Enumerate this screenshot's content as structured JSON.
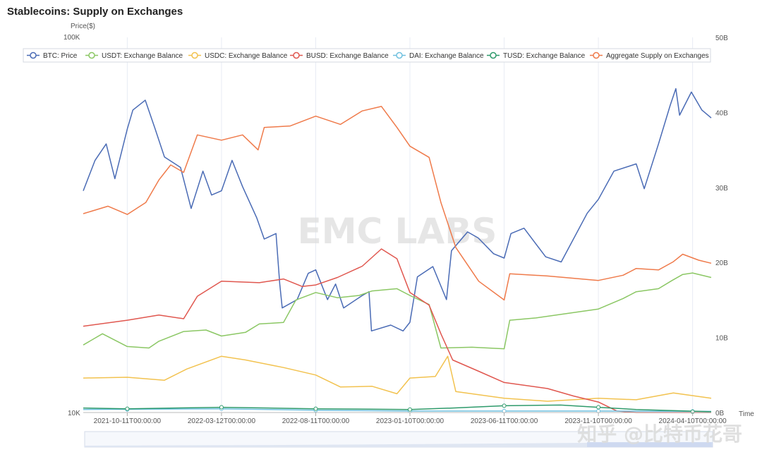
{
  "title": "Stablecoins: Supply on Exchanges",
  "watermark_center": "EMC LABS",
  "watermark_corner": "知乎 @比特币花哥",
  "chart_data": {
    "type": "line",
    "title": "Stablecoins: Supply on Exchanges",
    "left_axis": {
      "label": "Price($)",
      "min": 10000,
      "max": 100000,
      "scale": "log",
      "ticks": [
        "100K",
        "10K"
      ]
    },
    "right_axis": {
      "label": "",
      "min": 0,
      "max": 50,
      "ticks": [
        "0B",
        "10B",
        "20B",
        "30B",
        "40B",
        "50B"
      ]
    },
    "x_axis": {
      "label": "Time",
      "start": "2021-08-01",
      "end": "2024-05-10",
      "ticks": [
        "2021-10-11T00:00:00",
        "2022-03-12T00:00:00",
        "2022-08-11T00:00:00",
        "2023-01-10T00:00:00",
        "2023-06-11T00:00:00",
        "2023-11-10T00:00:00",
        "2024-04-10T00:00:00"
      ]
    },
    "grid": "vertical",
    "legend_position": "top",
    "series": [
      {
        "name": "BTC: Price",
        "axis": "left",
        "color": "#4a6bb5",
        "points": [
          [
            "2021-08-01",
            39000
          ],
          [
            "2021-08-20",
            47000
          ],
          [
            "2021-09-07",
            52000
          ],
          [
            "2021-09-21",
            42000
          ],
          [
            "2021-10-11",
            57000
          ],
          [
            "2021-10-20",
            64000
          ],
          [
            "2021-11-09",
            68000
          ],
          [
            "2021-11-25",
            57000
          ],
          [
            "2021-12-10",
            48000
          ],
          [
            "2022-01-05",
            45000
          ],
          [
            "2022-01-22",
            35000
          ],
          [
            "2022-02-10",
            44000
          ],
          [
            "2022-02-24",
            38000
          ],
          [
            "2022-03-12",
            39000
          ],
          [
            "2022-03-29",
            47000
          ],
          [
            "2022-04-15",
            40000
          ],
          [
            "2022-05-08",
            33000
          ],
          [
            "2022-05-20",
            29000
          ],
          [
            "2022-06-08",
            30000
          ],
          [
            "2022-06-14",
            22000
          ],
          [
            "2022-06-18",
            19000
          ],
          [
            "2022-07-12",
            20000
          ],
          [
            "2022-07-30",
            23500
          ],
          [
            "2022-08-11",
            24000
          ],
          [
            "2022-08-30",
            20000
          ],
          [
            "2022-09-12",
            22000
          ],
          [
            "2022-09-25",
            19000
          ],
          [
            "2022-10-25",
            20500
          ],
          [
            "2022-11-05",
            21000
          ],
          [
            "2022-11-09",
            16500
          ],
          [
            "2022-12-10",
            17100
          ],
          [
            "2022-12-30",
            16500
          ],
          [
            "2023-01-10",
            17400
          ],
          [
            "2023-01-22",
            23000
          ],
          [
            "2023-02-16",
            24500
          ],
          [
            "2023-03-10",
            20000
          ],
          [
            "2023-03-18",
            27000
          ],
          [
            "2023-04-13",
            30300
          ],
          [
            "2023-04-30",
            29200
          ],
          [
            "2023-05-25",
            26500
          ],
          [
            "2023-06-11",
            25800
          ],
          [
            "2023-06-22",
            30000
          ],
          [
            "2023-07-13",
            31000
          ],
          [
            "2023-08-17",
            26000
          ],
          [
            "2023-09-11",
            25200
          ],
          [
            "2023-10-23",
            34000
          ],
          [
            "2023-11-10",
            37000
          ],
          [
            "2023-12-05",
            44000
          ],
          [
            "2024-01-10",
            46000
          ],
          [
            "2024-01-23",
            39500
          ],
          [
            "2024-02-15",
            52000
          ],
          [
            "2024-03-05",
            66000
          ],
          [
            "2024-03-14",
            73000
          ],
          [
            "2024-03-20",
            62000
          ],
          [
            "2024-04-08",
            71500
          ],
          [
            "2024-04-25",
            64000
          ],
          [
            "2024-05-10",
            61000
          ]
        ]
      },
      {
        "name": "USDT: Exchange Balance",
        "axis": "right",
        "color": "#8bc764",
        "points": [
          [
            "2021-08-01",
            9.0
          ],
          [
            "2021-09-01",
            10.5
          ],
          [
            "2021-10-11",
            8.8
          ],
          [
            "2021-11-15",
            8.6
          ],
          [
            "2021-12-01",
            9.5
          ],
          [
            "2022-01-10",
            10.8
          ],
          [
            "2022-02-15",
            11.0
          ],
          [
            "2022-03-12",
            10.2
          ],
          [
            "2022-04-20",
            10.7
          ],
          [
            "2022-05-12",
            11.8
          ],
          [
            "2022-06-20",
            12.0
          ],
          [
            "2022-07-10",
            15.0
          ],
          [
            "2022-08-11",
            16.0
          ],
          [
            "2022-09-15",
            15.3
          ],
          [
            "2022-10-20",
            15.6
          ],
          [
            "2022-11-10",
            16.2
          ],
          [
            "2022-12-20",
            16.5
          ],
          [
            "2023-01-10",
            15.6
          ],
          [
            "2023-02-10",
            14.4
          ],
          [
            "2023-03-01",
            8.6
          ],
          [
            "2023-04-20",
            8.7
          ],
          [
            "2023-06-11",
            8.5
          ],
          [
            "2023-06-20",
            12.3
          ],
          [
            "2023-08-01",
            12.6
          ],
          [
            "2023-09-20",
            13.2
          ],
          [
            "2023-11-10",
            13.8
          ],
          [
            "2023-12-20",
            15.2
          ],
          [
            "2024-01-10",
            16.1
          ],
          [
            "2024-02-15",
            16.5
          ],
          [
            "2024-03-08",
            17.6
          ],
          [
            "2024-03-25",
            18.4
          ],
          [
            "2024-04-10",
            18.6
          ],
          [
            "2024-05-10",
            18.0
          ]
        ]
      },
      {
        "name": "USDC: Exchange Balance",
        "axis": "right",
        "color": "#f2c24f",
        "points": [
          [
            "2021-08-01",
            4.6
          ],
          [
            "2021-10-11",
            4.7
          ],
          [
            "2021-12-10",
            4.3
          ],
          [
            "2022-01-15",
            5.8
          ],
          [
            "2022-03-12",
            7.5
          ],
          [
            "2022-04-20",
            7.0
          ],
          [
            "2022-06-20",
            6.0
          ],
          [
            "2022-08-11",
            5.0
          ],
          [
            "2022-09-20",
            3.4
          ],
          [
            "2022-11-10",
            3.5
          ],
          [
            "2022-12-20",
            2.5
          ],
          [
            "2023-01-10",
            4.6
          ],
          [
            "2023-02-20",
            4.8
          ],
          [
            "2023-03-12",
            7.5
          ],
          [
            "2023-03-25",
            2.8
          ],
          [
            "2023-06-11",
            1.9
          ],
          [
            "2023-08-20",
            1.5
          ],
          [
            "2023-11-10",
            1.9
          ],
          [
            "2024-01-10",
            1.7
          ],
          [
            "2024-03-10",
            2.6
          ],
          [
            "2024-05-10",
            1.9
          ]
        ]
      },
      {
        "name": "BUSD: Exchange Balance",
        "axis": "right",
        "color": "#e0574f",
        "points": [
          [
            "2021-08-01",
            11.5
          ],
          [
            "2021-10-11",
            12.3
          ],
          [
            "2021-12-01",
            13.0
          ],
          [
            "2022-01-10",
            12.5
          ],
          [
            "2022-02-01",
            15.5
          ],
          [
            "2022-03-12",
            17.5
          ],
          [
            "2022-05-12",
            17.3
          ],
          [
            "2022-06-20",
            17.8
          ],
          [
            "2022-07-20",
            16.8
          ],
          [
            "2022-08-11",
            17.0
          ],
          [
            "2022-09-15",
            18.0
          ],
          [
            "2022-10-25",
            19.5
          ],
          [
            "2022-11-25",
            21.8
          ],
          [
            "2022-12-20",
            20.5
          ],
          [
            "2023-01-10",
            16.0
          ],
          [
            "2023-02-10",
            14.3
          ],
          [
            "2023-03-01",
            10.5
          ],
          [
            "2023-03-20",
            7.0
          ],
          [
            "2023-05-01",
            5.5
          ],
          [
            "2023-06-11",
            4.0
          ],
          [
            "2023-08-20",
            3.2
          ],
          [
            "2023-10-01",
            2.2
          ],
          [
            "2023-11-10",
            1.4
          ],
          [
            "2023-12-10",
            0.2
          ],
          [
            "2024-01-10",
            0.0
          ],
          [
            "2024-05-10",
            0.0
          ]
        ]
      },
      {
        "name": "DAI: Exchange Balance",
        "axis": "right",
        "color": "#6fc0df",
        "points": [
          [
            "2021-08-01",
            0.4
          ],
          [
            "2022-03-12",
            0.5
          ],
          [
            "2022-08-11",
            0.3
          ],
          [
            "2023-01-10",
            0.2
          ],
          [
            "2023-06-11",
            0.2
          ],
          [
            "2023-11-10",
            0.2
          ],
          [
            "2024-05-10",
            0.15
          ]
        ]
      },
      {
        "name": "TUSD: Exchange Balance",
        "axis": "right",
        "color": "#2e9a6b",
        "points": [
          [
            "2021-08-01",
            0.6
          ],
          [
            "2021-10-11",
            0.5
          ],
          [
            "2022-03-12",
            0.7
          ],
          [
            "2022-08-11",
            0.5
          ],
          [
            "2023-01-10",
            0.4
          ],
          [
            "2023-03-20",
            0.6
          ],
          [
            "2023-06-11",
            0.9
          ],
          [
            "2023-09-10",
            1.0
          ],
          [
            "2023-11-10",
            0.7
          ],
          [
            "2024-01-10",
            0.4
          ],
          [
            "2024-05-10",
            0.1
          ]
        ]
      },
      {
        "name": "Aggregate Supply on Exchanges",
        "axis": "right",
        "color": "#ef7a4a",
        "points": [
          [
            "2021-08-01",
            26.5
          ],
          [
            "2021-09-10",
            27.5
          ],
          [
            "2021-10-11",
            26.4
          ],
          [
            "2021-11-10",
            28.0
          ],
          [
            "2021-12-01",
            31.0
          ],
          [
            "2021-12-20",
            33.0
          ],
          [
            "2022-01-10",
            32.0
          ],
          [
            "2022-02-01",
            37.0
          ],
          [
            "2022-03-12",
            36.3
          ],
          [
            "2022-04-15",
            37.0
          ],
          [
            "2022-05-10",
            35.0
          ],
          [
            "2022-05-20",
            38.0
          ],
          [
            "2022-07-01",
            38.2
          ],
          [
            "2022-08-11",
            39.5
          ],
          [
            "2022-09-20",
            38.4
          ],
          [
            "2022-10-25",
            40.2
          ],
          [
            "2022-11-25",
            40.8
          ],
          [
            "2022-12-20",
            38.0
          ],
          [
            "2023-01-10",
            35.5
          ],
          [
            "2023-02-10",
            34.0
          ],
          [
            "2023-03-01",
            28.0
          ],
          [
            "2023-03-25",
            22.0
          ],
          [
            "2023-05-01",
            17.5
          ],
          [
            "2023-06-11",
            15.0
          ],
          [
            "2023-06-20",
            18.5
          ],
          [
            "2023-08-20",
            18.2
          ],
          [
            "2023-11-10",
            17.6
          ],
          [
            "2023-12-20",
            18.3
          ],
          [
            "2024-01-10",
            19.2
          ],
          [
            "2024-02-15",
            19.0
          ],
          [
            "2024-03-10",
            20.1
          ],
          [
            "2024-03-25",
            21.1
          ],
          [
            "2024-04-20",
            20.3
          ],
          [
            "2024-05-10",
            19.9
          ]
        ]
      }
    ]
  }
}
